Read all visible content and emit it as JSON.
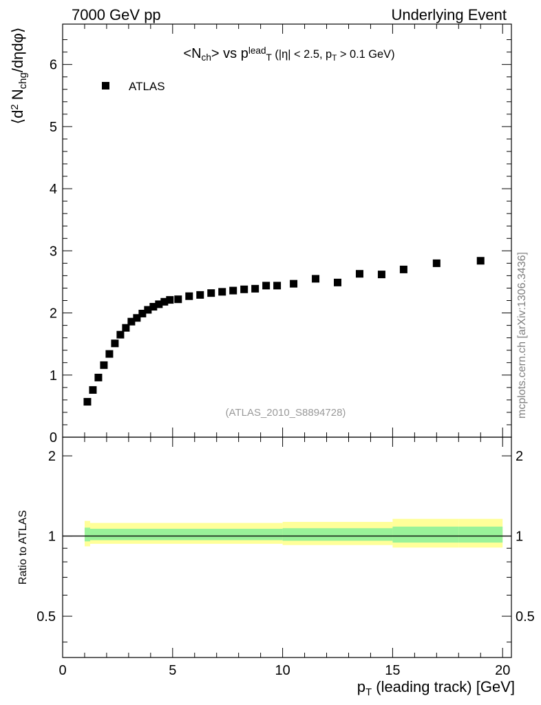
{
  "header": {
    "left": "7000 GeV pp",
    "right": "Underlying Event"
  },
  "watermark": "mcplots.cern.ch [arXiv:1306.3436]",
  "analysis_id": "(ATLAS_2010_S8894728)",
  "colors": {
    "marker": "#000000",
    "band_inner": "#99f299",
    "band_outer": "#ffff99",
    "reference_line": "#000000",
    "analysis_text": "#999999",
    "watermark_text": "#7f7f7f"
  },
  "chart_data": [
    {
      "type": "scatter",
      "title": {
        "parts": [
          {
            "t": "<N",
            "s": "n"
          },
          {
            "t": "ch",
            "s": "sub"
          },
          {
            "t": "> vs p",
            "s": "n"
          },
          {
            "t": "lead",
            "s": "sup"
          },
          {
            "t": "T",
            "s": "sub"
          },
          {
            "t": " (|η| < 2.5, p",
            "s": "small"
          },
          {
            "t": "T",
            "s": "smallsub"
          },
          {
            "t": " > 0.1 GeV)",
            "s": "small"
          }
        ]
      },
      "ylabel": {
        "parts": [
          {
            "t": "⟨d",
            "s": "n"
          },
          {
            "t": "2",
            "s": "sup"
          },
          {
            "t": " N",
            "s": "n"
          },
          {
            "t": "chg",
            "s": "sub"
          },
          {
            "t": "/dηdφ⟩",
            "s": "n"
          }
        ]
      },
      "xlim": [
        0,
        20.4
      ],
      "ylim": [
        0,
        6.65
      ],
      "yticks": [
        "0",
        "1",
        "2",
        "3",
        "4",
        "5",
        "6"
      ],
      "grid": false,
      "legend": {
        "position": "top-left",
        "entries": [
          "ATLAS"
        ]
      },
      "series": [
        {
          "name": "ATLAS",
          "marker": "square",
          "x": [
            1.125,
            1.375,
            1.625,
            1.875,
            2.125,
            2.375,
            2.625,
            2.875,
            3.125,
            3.375,
            3.625,
            3.875,
            4.125,
            4.375,
            4.625,
            4.875,
            5.25,
            5.75,
            6.25,
            6.75,
            7.25,
            7.75,
            8.25,
            8.75,
            9.25,
            9.75,
            10.5,
            11.5,
            12.5,
            13.5,
            14.5,
            15.5,
            17.0,
            19.0
          ],
          "y": [
            0.57,
            0.76,
            0.96,
            1.16,
            1.34,
            1.51,
            1.65,
            1.76,
            1.86,
            1.92,
            1.99,
            2.05,
            2.1,
            2.14,
            2.18,
            2.21,
            2.22,
            2.27,
            2.29,
            2.32,
            2.34,
            2.36,
            2.38,
            2.39,
            2.44,
            2.44,
            2.47,
            2.55,
            2.49,
            2.63,
            2.62,
            2.7,
            2.8,
            2.84
          ]
        }
      ]
    },
    {
      "type": "area",
      "ylabel": "Ratio to ATLAS",
      "xlabel": {
        "parts": [
          {
            "t": "p",
            "s": "n"
          },
          {
            "t": "T",
            "s": "sub"
          },
          {
            "t": " (leading track) [GeV]",
            "s": "n"
          }
        ]
      },
      "xlim": [
        0,
        20.4
      ],
      "ylim": [
        0.35,
        2.35
      ],
      "xticks": [
        "0",
        "5",
        "10",
        "15",
        "20"
      ],
      "yticks": [
        {
          "value": 0.5,
          "label": "0.5"
        },
        {
          "value": 1,
          "label": "1"
        },
        {
          "value": 2,
          "label": "2"
        }
      ],
      "reference_line": 1.0,
      "bands": [
        {
          "name": "outer",
          "segments": [
            {
              "x0": 1.0,
              "x1": 1.25,
              "lo": 0.915,
              "hi": 1.14
            },
            {
              "x0": 1.25,
              "x1": 10.0,
              "lo": 0.935,
              "hi": 1.12
            },
            {
              "x0": 10.0,
              "x1": 15.0,
              "lo": 0.925,
              "hi": 1.13
            },
            {
              "x0": 15.0,
              "x1": 18.0,
              "lo": 0.905,
              "hi": 1.16
            },
            {
              "x0": 18.0,
              "x1": 20.0,
              "lo": 0.905,
              "hi": 1.16
            }
          ]
        },
        {
          "name": "inner",
          "segments": [
            {
              "x0": 1.0,
              "x1": 1.25,
              "lo": 0.955,
              "hi": 1.075
            },
            {
              "x0": 1.25,
              "x1": 10.0,
              "lo": 0.965,
              "hi": 1.065
            },
            {
              "x0": 10.0,
              "x1": 15.0,
              "lo": 0.96,
              "hi": 1.07
            },
            {
              "x0": 15.0,
              "x1": 18.0,
              "lo": 0.945,
              "hi": 1.085
            },
            {
              "x0": 18.0,
              "x1": 20.0,
              "lo": 0.945,
              "hi": 1.085
            }
          ]
        }
      ]
    }
  ]
}
